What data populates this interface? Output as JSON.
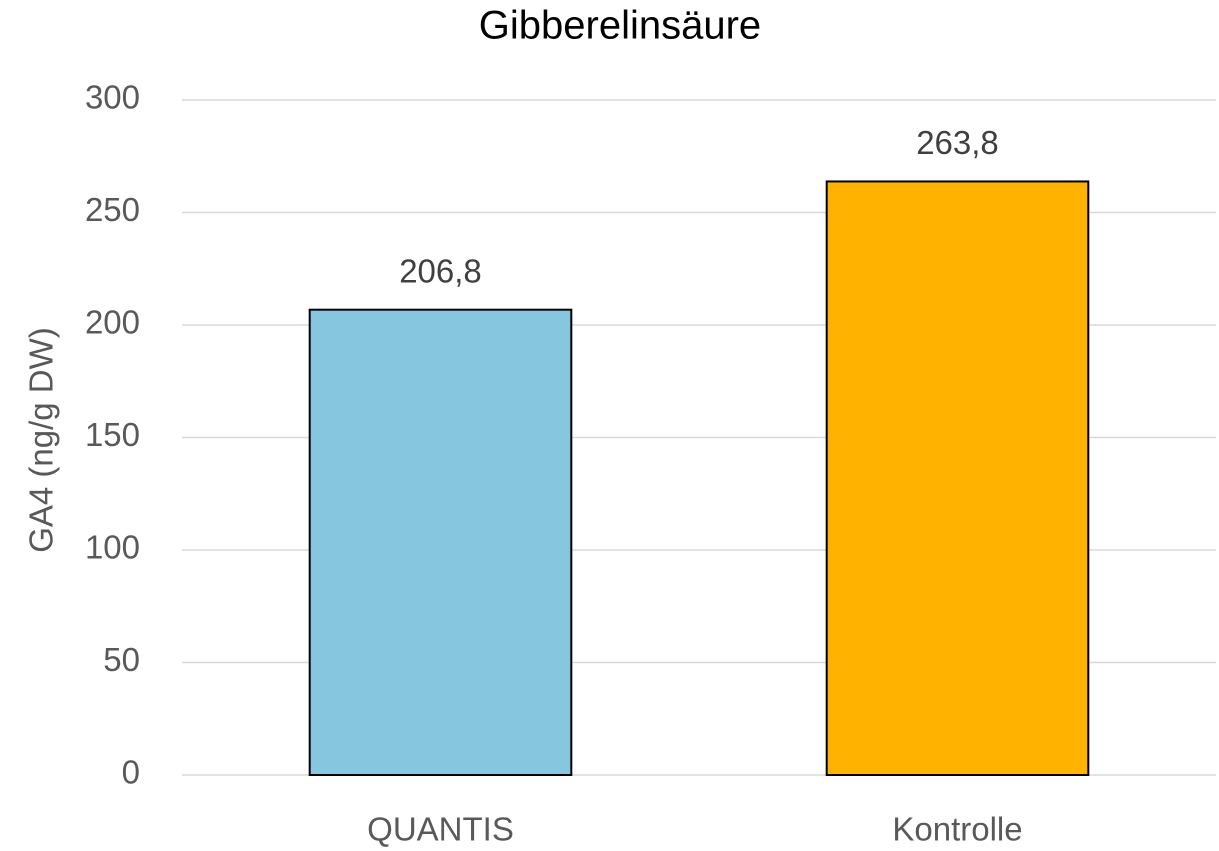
{
  "chart_data": {
    "type": "bar",
    "title": "Gibberelinsäure",
    "y_label": "GA4 (ng/g DW)",
    "categories": [
      "QUANTIS",
      "Kontrolle"
    ],
    "values": [
      206.8,
      263.8
    ],
    "value_labels": [
      "206,8",
      "263,8"
    ],
    "colors": [
      "#86c6de",
      "#ffb300"
    ],
    "ylim": [
      0,
      300
    ],
    "yticks": [
      0,
      50,
      100,
      150,
      200,
      250,
      300
    ],
    "grid": true
  }
}
